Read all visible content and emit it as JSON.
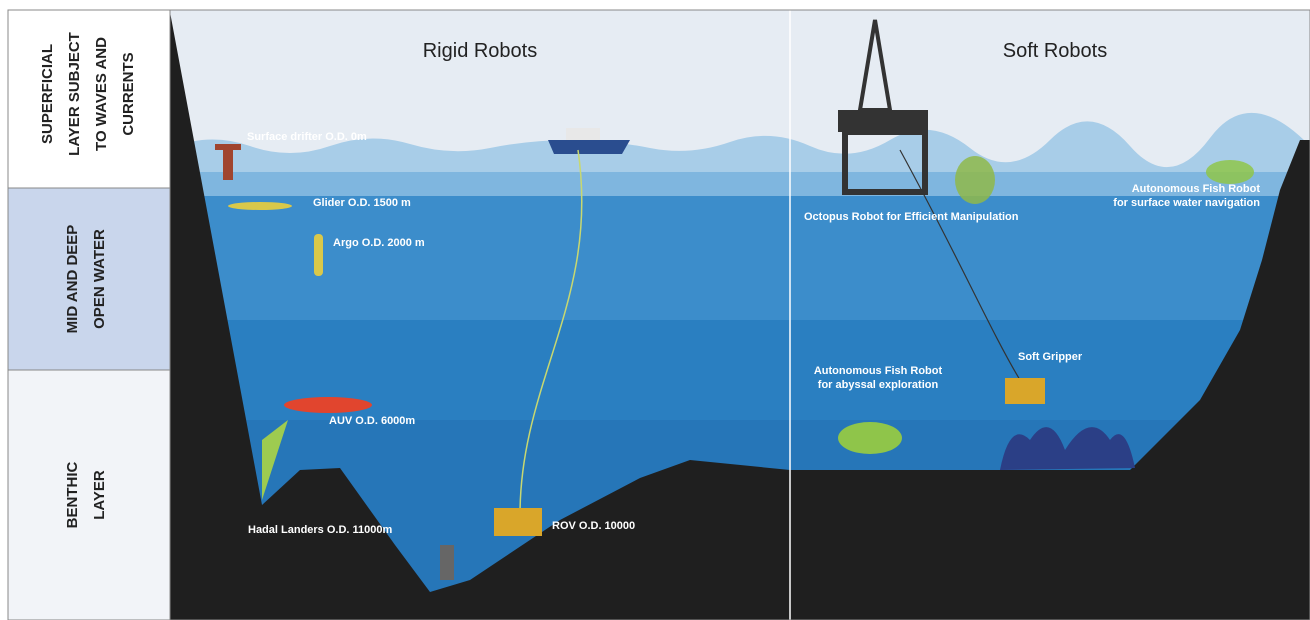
{
  "layers": [
    {
      "lines": [
        "SUPERFICIAL",
        "LAYER SUBJECT",
        "TO WAVES AND",
        "CURRENTS"
      ]
    },
    {
      "lines": [
        "MID AND DEEP",
        "OPEN WATER"
      ]
    },
    {
      "lines": [
        "BENTHIC",
        "LAYER"
      ]
    }
  ],
  "sections": [
    "Rigid Robots",
    "Soft Robots"
  ],
  "labels": [
    {
      "lines": [
        "Surface drifter O.D. 0m"
      ]
    },
    {
      "lines": [
        "Glider O.D. 1500 m"
      ]
    },
    {
      "lines": [
        "Argo O.D. 2000 m"
      ]
    },
    {
      "lines": [
        "AUV O.D. 6000m"
      ]
    },
    {
      "lines": [
        "Hadal Landers O.D. 11000m"
      ]
    },
    {
      "lines": [
        "ROV O.D. 10000"
      ]
    },
    {
      "lines": [
        "Octopus Robot for Efficient Manipulation"
      ]
    },
    {
      "lines": [
        "Autonomous Fish Robot",
        "for surface water navigation"
      ]
    },
    {
      "lines": [
        "Soft Gripper"
      ]
    },
    {
      "lines": [
        "Autonomous Fish Robot",
        "for abyssal exploration"
      ]
    }
  ]
}
